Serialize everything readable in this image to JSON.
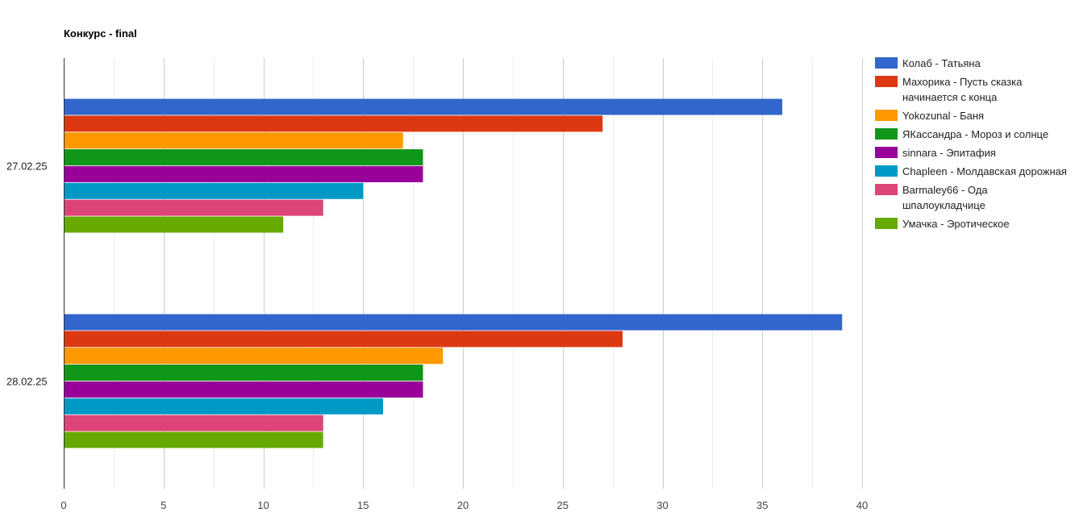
{
  "chart_data": {
    "type": "bar",
    "orientation": "horizontal",
    "title": "Конкурс - final",
    "categories": [
      "27.02.25",
      "28.02.25"
    ],
    "xlim": [
      0,
      40
    ],
    "x_ticks": [
      "0",
      "5",
      "10",
      "15",
      "20",
      "25",
      "30",
      "35",
      "40"
    ],
    "grid": true,
    "legend_position": "right",
    "series": [
      {
        "name": "Колаб - Татьяна",
        "color": "#3366cc",
        "values": [
          36,
          39
        ]
      },
      {
        "name": "Махорика - Пусть сказка начинается с конца",
        "color": "#dc3912",
        "values": [
          27,
          28
        ]
      },
      {
        "name": "Yokozunal - Баня",
        "color": "#ff9900",
        "values": [
          17,
          19
        ]
      },
      {
        "name": "ЯКассандра - Мороз и солнце",
        "color": "#109618",
        "values": [
          18,
          18
        ]
      },
      {
        "name": "sinnara - Эпитафия",
        "color": "#990099",
        "values": [
          18,
          18
        ]
      },
      {
        "name": "Chapleen - Молдавская дорожная",
        "color": "#0099c6",
        "values": [
          15,
          16
        ]
      },
      {
        "name": "Barmaley66 - Ода шпалоукладчице",
        "color": "#dd4477",
        "values": [
          13,
          13
        ]
      },
      {
        "name": "Умачка - Эротическое",
        "color": "#66aa00",
        "values": [
          11,
          13
        ]
      }
    ]
  }
}
